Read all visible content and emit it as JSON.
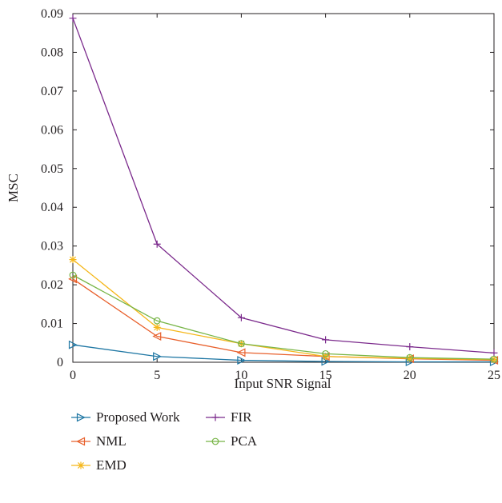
{
  "chart_data": {
    "type": "line",
    "xlabel": "Input SNR Signal",
    "ylabel": "MSC",
    "xlim": [
      0,
      25
    ],
    "ylim": [
      0,
      0.09
    ],
    "x_ticks": [
      0,
      5,
      10,
      15,
      20,
      25
    ],
    "y_ticks": [
      0,
      0.01,
      0.02,
      0.03,
      0.04,
      0.05,
      0.06,
      0.07,
      0.08,
      0.09
    ],
    "grid": false,
    "legend_position": "bottom",
    "x": [
      0,
      5,
      10,
      15,
      20,
      25
    ],
    "series": [
      {
        "name": "Proposed Work",
        "color": "#1f77a4",
        "marker": "triangle-right",
        "values": [
          0.0045,
          0.0015,
          0.0005,
          0.0002,
          0.0001,
          0.0001
        ]
      },
      {
        "name": "NML",
        "color": "#e8602c",
        "marker": "triangle-left",
        "values": [
          0.0215,
          0.0067,
          0.0025,
          0.0015,
          0.0009,
          0.0005
        ]
      },
      {
        "name": "EMD",
        "color": "#f5b71a",
        "marker": "asterisk",
        "values": [
          0.0265,
          0.009,
          0.0048,
          0.0015,
          0.001,
          0.0007
        ]
      },
      {
        "name": "FIR",
        "color": "#7b2a8c",
        "marker": "plus",
        "values": [
          0.0888,
          0.0305,
          0.0115,
          0.0058,
          0.004,
          0.0024
        ]
      },
      {
        "name": "PCA",
        "color": "#78b547",
        "marker": "circle",
        "values": [
          0.0225,
          0.0107,
          0.0048,
          0.0022,
          0.0012,
          0.0008
        ]
      }
    ]
  }
}
